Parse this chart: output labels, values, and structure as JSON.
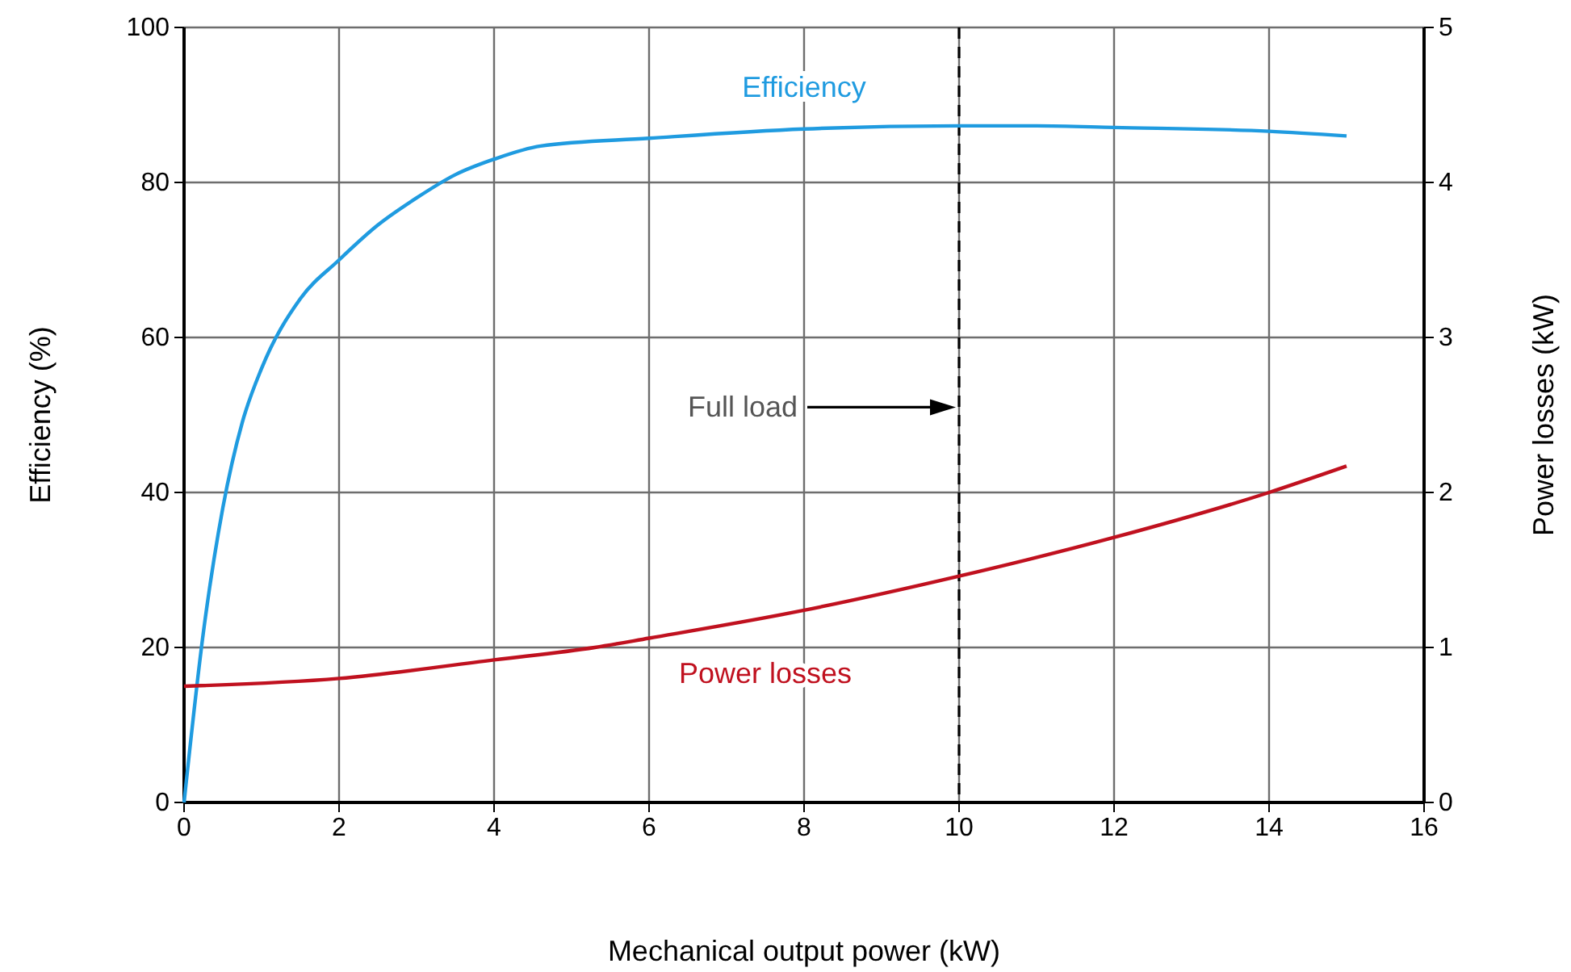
{
  "chart_data": {
    "type": "line",
    "xlabel": "Mechanical output power (kW)",
    "ylabel": "Efficiency (%)",
    "y2label": "Power losses (kW)",
    "xlim": [
      0,
      16
    ],
    "xticks": [
      0,
      2,
      4,
      6,
      8,
      10,
      12,
      14,
      16
    ],
    "ylim": [
      0,
      100
    ],
    "yticks": [
      0,
      20,
      40,
      60,
      80,
      100
    ],
    "y2lim": [
      0,
      5
    ],
    "y2ticks": [
      0,
      1,
      2,
      3,
      4,
      5
    ],
    "grid": true,
    "legend": false,
    "marker": "none",
    "line_style": "solid",
    "series": [
      {
        "name": "Efficiency",
        "color": "#1f9be0",
        "x": [
          0,
          0.25,
          0.5,
          0.75,
          1,
          1.5,
          2,
          2.5,
          3,
          3.5,
          4,
          4.6,
          6,
          8,
          10,
          11,
          12,
          14,
          15
        ],
        "values": [
          0,
          22,
          38,
          49,
          56,
          65,
          70,
          74.5,
          78,
          81,
          83,
          84.7,
          85.7,
          86.9,
          87.3,
          87.3,
          87.1,
          86.6,
          86
        ]
      },
      {
        "name": "Power losses",
        "color": "#c0111f",
        "axis": "y2",
        "x": [
          0,
          2,
          4,
          5.3,
          6,
          8,
          10,
          12,
          14,
          15
        ],
        "values": [
          0.75,
          0.8,
          0.92,
          1,
          1.06,
          1.24,
          1.46,
          1.71,
          2,
          2.17
        ]
      }
    ],
    "ref_lines": [
      {
        "axis": "x",
        "value": 10,
        "color": "#000000",
        "line_style": "dashed"
      }
    ],
    "annotations": [
      "Full load"
    ]
  }
}
